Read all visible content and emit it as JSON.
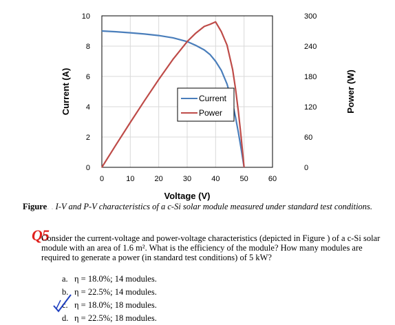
{
  "chart_data": {
    "type": "line",
    "xlabel": "Voltage (V)",
    "ylabel_left": "Current (A)",
    "ylabel_right": "Power (W)",
    "x_ticks": [
      0,
      10,
      20,
      30,
      40,
      50,
      60
    ],
    "y_left_ticks": [
      0,
      2,
      4,
      6,
      8,
      10
    ],
    "y_right_ticks": [
      0,
      60,
      120,
      180,
      240,
      300
    ],
    "xlim": [
      0,
      60
    ],
    "ylim_left": [
      0,
      10
    ],
    "ylim_right": [
      0,
      300
    ],
    "legend_position": "center",
    "series": [
      {
        "name": "Current",
        "axis": "left",
        "color": "#4a7ebb",
        "x": [
          0,
          5,
          10,
          15,
          20,
          25,
          30,
          33,
          36,
          38,
          40,
          42,
          44,
          46,
          47,
          48,
          49,
          50
        ],
        "y": [
          9.0,
          8.95,
          8.88,
          8.8,
          8.7,
          8.55,
          8.3,
          8.05,
          7.75,
          7.45,
          7.0,
          6.4,
          5.5,
          4.2,
          3.3,
          2.3,
          1.2,
          0
        ]
      },
      {
        "name": "Power",
        "axis": "right",
        "color": "#be4b48",
        "x": [
          0,
          5,
          10,
          15,
          20,
          25,
          30,
          33,
          36,
          38,
          40,
          42,
          44,
          46,
          47,
          48,
          49,
          50
        ],
        "y": [
          0,
          44.8,
          88.8,
          132,
          174,
          213.8,
          249,
          265.7,
          279,
          283.1,
          288,
          268.8,
          242,
          193.2,
          155.1,
          110.4,
          58.8,
          0
        ]
      }
    ]
  },
  "caption": {
    "label": "Figure",
    "dots": ". .",
    "text": "I-V and P-V characteristics of a c-Si solar module measured under standard test conditions."
  },
  "question": {
    "marker": "Q5",
    "text": "Consider the current-voltage and power-voltage characteristics (depicted in Figure   ) of a c-Si solar module with an area of 1.6 m². What is the efficiency of the module? How many modules are required to generate a power (in standard test conditions) of 5 kW?",
    "options": [
      {
        "letter": "a.",
        "text": "η = 18.0%; 14 modules."
      },
      {
        "letter": "b.",
        "text": "η = 22.5%; 14 modules."
      },
      {
        "letter": "c.",
        "text": "η = 18.0%; 18 modules."
      },
      {
        "letter": "d.",
        "text": "η = 22.5%; 18 modules."
      }
    ]
  }
}
